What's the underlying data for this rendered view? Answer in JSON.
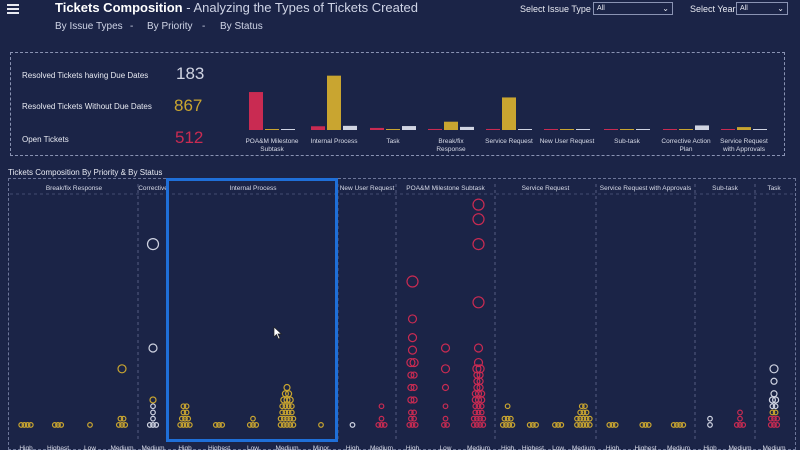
{
  "header": {
    "title_bold": "Tickets Composition",
    "title_sub": " - Analyzing the Types of Tickets Created",
    "nav": [
      "By Issue Types",
      "By Priority",
      "By Status"
    ],
    "nav_sep": "-",
    "filters": [
      {
        "label": "Select Issue Type",
        "value": "All"
      },
      {
        "label": "Select Year",
        "value": "All"
      }
    ]
  },
  "kpis": [
    {
      "label": "Resolved Tickets having Due Dates",
      "value": "183",
      "color": "#d0d4e2"
    },
    {
      "label": "Resolved Tickets Without Due Dates",
      "value": "867",
      "color": "#c9a530"
    },
    {
      "label": "Open Tickets",
      "value": "512",
      "color": "#c92b52"
    }
  ],
  "colors": {
    "red": "#c92b52",
    "gold": "#c9a530",
    "white": "#d0d4e2",
    "background": "#1b2447"
  },
  "chart_data": [
    {
      "type": "bar",
      "categories": [
        "POA&M Milestone Subtask",
        "Internal Process",
        "Task",
        "Break/fix Response",
        "Service Request",
        "New User Request",
        "Sub-task",
        "Corrective Action Plan",
        "Service Request with Approvals"
      ],
      "series": [
        {
          "values": [
            183,
            18,
            10,
            5,
            5,
            2,
            1,
            2,
            1
          ]
        },
        {
          "values": [
            0,
            262,
            0,
            40,
            157,
            2,
            1,
            0,
            14
          ]
        },
        {
          "values": [
            2,
            20,
            19,
            15,
            2,
            2,
            2,
            22,
            2
          ]
        }
      ],
      "series_colors": [
        "#c92b52",
        "#c9a530",
        "#d0d4e2"
      ],
      "ylim": [
        0,
        270
      ]
    },
    {
      "type": "scatter",
      "title": "Tickets Composition By Priority & By Status",
      "groups": [
        {
          "name": "Break/fix Response",
          "categories": [
            "High",
            "Highest",
            "Low",
            "Medium"
          ]
        },
        {
          "name": "Corrective Action Plan",
          "categories": [
            "Medium"
          ]
        },
        {
          "name": "Internal Process",
          "categories": [
            "High",
            "Highest",
            "Low",
            "Medium",
            "Minor"
          ]
        },
        {
          "name": "New User Request",
          "categories": [
            "High",
            "Medium"
          ]
        },
        {
          "name": "POA&M Milestone Subtask",
          "categories": [
            "High",
            "Low",
            "Medium"
          ]
        },
        {
          "name": "Service Request",
          "categories": [
            "High",
            "Highest",
            "Low",
            "Medium"
          ]
        },
        {
          "name": "Service Request with Approvals",
          "categories": [
            "High",
            "Highest",
            "Medium"
          ]
        },
        {
          "name": "Sub-task",
          "categories": [
            "High",
            "Medium"
          ]
        },
        {
          "name": "Task",
          "categories": [
            "Medium"
          ]
        }
      ],
      "points": [
        {
          "g": 0,
          "c": 0,
          "y": 1,
          "s": 0,
          "n": 4
        },
        {
          "g": 0,
          "c": 1,
          "y": 1,
          "s": 0,
          "n": 3
        },
        {
          "g": 0,
          "c": 2,
          "y": 1,
          "s": 0,
          "n": 1
        },
        {
          "g": 0,
          "c": 3,
          "y": 1,
          "s": 0,
          "n": 3
        },
        {
          "g": 0,
          "c": 3,
          "y": 4,
          "s": 0,
          "n": 2
        },
        {
          "g": 0,
          "c": 3,
          "y": 28,
          "s": 0,
          "n": 1
        },
        {
          "g": 1,
          "c": 0,
          "y": 1,
          "s": 2,
          "n": 3
        },
        {
          "g": 1,
          "c": 0,
          "y": 4,
          "s": 2,
          "n": 1
        },
        {
          "g": 1,
          "c": 0,
          "y": 7,
          "s": 2,
          "n": 1
        },
        {
          "g": 1,
          "c": 0,
          "y": 10,
          "s": 2,
          "n": 1
        },
        {
          "g": 1,
          "c": 0,
          "y": 13,
          "s": 0,
          "n": 1
        },
        {
          "g": 1,
          "c": 0,
          "y": 38,
          "s": 2,
          "n": 1
        },
        {
          "g": 1,
          "c": 0,
          "y": 88,
          "s": 2,
          "n": 1
        },
        {
          "g": 2,
          "c": 0,
          "y": 1,
          "s": 0,
          "n": 4
        },
        {
          "g": 2,
          "c": 0,
          "y": 4,
          "s": 0,
          "n": 3
        },
        {
          "g": 2,
          "c": 0,
          "y": 7,
          "s": 0,
          "n": 2
        },
        {
          "g": 2,
          "c": 0,
          "y": 10,
          "s": 0,
          "n": 2
        },
        {
          "g": 2,
          "c": 1,
          "y": 1,
          "s": 0,
          "n": 3
        },
        {
          "g": 2,
          "c": 2,
          "y": 1,
          "s": 0,
          "n": 3
        },
        {
          "g": 2,
          "c": 2,
          "y": 4,
          "s": 0,
          "n": 1
        },
        {
          "g": 2,
          "c": 3,
          "y": 1,
          "s": 0,
          "n": 5
        },
        {
          "g": 2,
          "c": 3,
          "y": 4,
          "s": 0,
          "n": 5
        },
        {
          "g": 2,
          "c": 3,
          "y": 7,
          "s": 0,
          "n": 4
        },
        {
          "g": 2,
          "c": 3,
          "y": 10,
          "s": 0,
          "n": 4
        },
        {
          "g": 2,
          "c": 3,
          "y": 13,
          "s": 0,
          "n": 3
        },
        {
          "g": 2,
          "c": 3,
          "y": 16,
          "s": 0,
          "n": 2
        },
        {
          "g": 2,
          "c": 3,
          "y": 19,
          "s": 0,
          "n": 1
        },
        {
          "g": 2,
          "c": 4,
          "y": 1,
          "s": 0,
          "n": 1
        },
        {
          "g": 3,
          "c": 0,
          "y": 1,
          "s": 2,
          "n": 1
        },
        {
          "g": 3,
          "c": 1,
          "y": 1,
          "s": 1,
          "n": 3
        },
        {
          "g": 3,
          "c": 1,
          "y": 4,
          "s": 1,
          "n": 1
        },
        {
          "g": 3,
          "c": 1,
          "y": 10,
          "s": 1,
          "n": 1
        },
        {
          "g": 4,
          "c": 0,
          "y": 1,
          "s": 1,
          "n": 3
        },
        {
          "g": 4,
          "c": 0,
          "y": 4,
          "s": 1,
          "n": 2
        },
        {
          "g": 4,
          "c": 0,
          "y": 7,
          "s": 1,
          "n": 2
        },
        {
          "g": 4,
          "c": 0,
          "y": 13,
          "s": 1,
          "n": 2
        },
        {
          "g": 4,
          "c": 0,
          "y": 19,
          "s": 1,
          "n": 2
        },
        {
          "g": 4,
          "c": 0,
          "y": 25,
          "s": 1,
          "n": 2
        },
        {
          "g": 4,
          "c": 0,
          "y": 31,
          "s": 1,
          "n": 2
        },
        {
          "g": 4,
          "c": 0,
          "y": 37,
          "s": 1,
          "n": 1
        },
        {
          "g": 4,
          "c": 0,
          "y": 43,
          "s": 1,
          "n": 1
        },
        {
          "g": 4,
          "c": 0,
          "y": 52,
          "s": 1,
          "n": 1
        },
        {
          "g": 4,
          "c": 0,
          "y": 70,
          "s": 1,
          "n": 1
        },
        {
          "g": 4,
          "c": 1,
          "y": 1,
          "s": 1,
          "n": 2
        },
        {
          "g": 4,
          "c": 1,
          "y": 4,
          "s": 1,
          "n": 1
        },
        {
          "g": 4,
          "c": 1,
          "y": 10,
          "s": 1,
          "n": 1
        },
        {
          "g": 4,
          "c": 1,
          "y": 19,
          "s": 1,
          "n": 1
        },
        {
          "g": 4,
          "c": 1,
          "y": 28,
          "s": 1,
          "n": 1
        },
        {
          "g": 4,
          "c": 1,
          "y": 38,
          "s": 1,
          "n": 1
        },
        {
          "g": 4,
          "c": 2,
          "y": 1,
          "s": 1,
          "n": 4
        },
        {
          "g": 4,
          "c": 2,
          "y": 4,
          "s": 1,
          "n": 4
        },
        {
          "g": 4,
          "c": 2,
          "y": 7,
          "s": 1,
          "n": 3
        },
        {
          "g": 4,
          "c": 2,
          "y": 10,
          "s": 1,
          "n": 3
        },
        {
          "g": 4,
          "c": 2,
          "y": 13,
          "s": 1,
          "n": 3
        },
        {
          "g": 4,
          "c": 2,
          "y": 16,
          "s": 1,
          "n": 3
        },
        {
          "g": 4,
          "c": 2,
          "y": 19,
          "s": 1,
          "n": 2
        },
        {
          "g": 4,
          "c": 2,
          "y": 22,
          "s": 1,
          "n": 2
        },
        {
          "g": 4,
          "c": 2,
          "y": 25,
          "s": 1,
          "n": 2
        },
        {
          "g": 4,
          "c": 2,
          "y": 28,
          "s": 1,
          "n": 2
        },
        {
          "g": 4,
          "c": 2,
          "y": 31,
          "s": 1,
          "n": 1
        },
        {
          "g": 4,
          "c": 2,
          "y": 38,
          "s": 1,
          "n": 1
        },
        {
          "g": 4,
          "c": 2,
          "y": 60,
          "s": 1,
          "n": 1
        },
        {
          "g": 4,
          "c": 2,
          "y": 88,
          "s": 1,
          "n": 1
        },
        {
          "g": 4,
          "c": 2,
          "y": 100,
          "s": 1,
          "n": 1
        },
        {
          "g": 4,
          "c": 2,
          "y": 107,
          "s": 1,
          "n": 1
        },
        {
          "g": 5,
          "c": 0,
          "y": 1,
          "s": 0,
          "n": 4
        },
        {
          "g": 5,
          "c": 0,
          "y": 4,
          "s": 0,
          "n": 3
        },
        {
          "g": 5,
          "c": 0,
          "y": 10,
          "s": 0,
          "n": 1
        },
        {
          "g": 5,
          "c": 1,
          "y": 1,
          "s": 0,
          "n": 3
        },
        {
          "g": 5,
          "c": 2,
          "y": 1,
          "s": 0,
          "n": 3
        },
        {
          "g": 5,
          "c": 3,
          "y": 1,
          "s": 0,
          "n": 5
        },
        {
          "g": 5,
          "c": 3,
          "y": 4,
          "s": 0,
          "n": 5
        },
        {
          "g": 5,
          "c": 3,
          "y": 7,
          "s": 0,
          "n": 3
        },
        {
          "g": 5,
          "c": 3,
          "y": 10,
          "s": 0,
          "n": 2
        },
        {
          "g": 6,
          "c": 0,
          "y": 1,
          "s": 0,
          "n": 3
        },
        {
          "g": 6,
          "c": 1,
          "y": 1,
          "s": 0,
          "n": 3
        },
        {
          "g": 6,
          "c": 2,
          "y": 1,
          "s": 0,
          "n": 4
        },
        {
          "g": 7,
          "c": 0,
          "y": 1,
          "s": 2,
          "n": 1
        },
        {
          "g": 7,
          "c": 0,
          "y": 4,
          "s": 2,
          "n": 1
        },
        {
          "g": 7,
          "c": 1,
          "y": 1,
          "s": 1,
          "n": 3
        },
        {
          "g": 7,
          "c": 1,
          "y": 4,
          "s": 1,
          "n": 1
        },
        {
          "g": 7,
          "c": 1,
          "y": 7,
          "s": 1,
          "n": 1
        },
        {
          "g": 8,
          "c": 0,
          "y": 1,
          "s": 1,
          "n": 3
        },
        {
          "g": 8,
          "c": 0,
          "y": 4,
          "s": 1,
          "n": 3
        },
        {
          "g": 8,
          "c": 0,
          "y": 7,
          "s": 0,
          "n": 2
        },
        {
          "g": 8,
          "c": 0,
          "y": 10,
          "s": 2,
          "n": 2
        },
        {
          "g": 8,
          "c": 0,
          "y": 13,
          "s": 2,
          "n": 2
        },
        {
          "g": 8,
          "c": 0,
          "y": 16,
          "s": 2,
          "n": 1
        },
        {
          "g": 8,
          "c": 0,
          "y": 22,
          "s": 2,
          "n": 1
        },
        {
          "g": 8,
          "c": 0,
          "y": 28,
          "s": 2,
          "n": 1
        }
      ],
      "series_colors": [
        "#c9a530",
        "#c92b52",
        "#d0d4e2"
      ],
      "ylim": [
        0,
        115
      ]
    }
  ]
}
